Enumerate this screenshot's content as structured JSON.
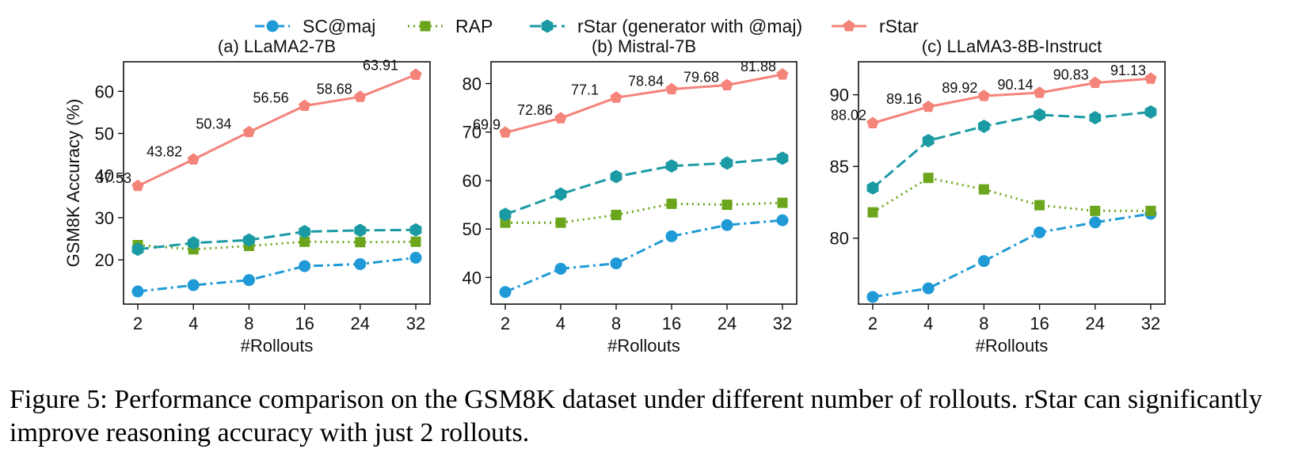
{
  "colors": {
    "sc_maj": "#1f9ad6",
    "rap": "#6aa51c",
    "rstar_gen": "#1b9aa4",
    "rstar": "#f4837a"
  },
  "legend": [
    {
      "key": "sc_maj",
      "label": "SC@maj",
      "style": "dashdot",
      "marker": "circle"
    },
    {
      "key": "rap",
      "label": "RAP",
      "style": "dotted",
      "marker": "square"
    },
    {
      "key": "rstar_gen",
      "label": "rStar (generator with @maj)",
      "style": "dashed",
      "marker": "hexagon"
    },
    {
      "key": "rstar",
      "label": "rStar",
      "style": "solid",
      "marker": "pentagon"
    }
  ],
  "shared": {
    "xlabel": "#Rollouts",
    "ylabel": "GSM8K Accuracy (%)"
  },
  "chart_data": [
    {
      "type": "line",
      "title": "(a) LLaMA2-7B",
      "categories": [
        "2",
        "4",
        "8",
        "16",
        "24",
        "32"
      ],
      "xlabel": "#Rollouts",
      "ylabel": "GSM8K Accuracy (%)",
      "ylim": [
        9.5,
        67
      ],
      "yticks": [
        20,
        30,
        40,
        50,
        60
      ],
      "series": [
        {
          "key": "sc_maj",
          "name": "SC@maj",
          "values": [
            12.5,
            14.0,
            15.2,
            18.5,
            19.0,
            20.5
          ]
        },
        {
          "key": "rap",
          "name": "RAP",
          "values": [
            23.5,
            22.5,
            23.3,
            24.3,
            24.2,
            24.3
          ]
        },
        {
          "key": "rstar_gen",
          "name": "rStar (generator with @maj)",
          "values": [
            22.5,
            24.0,
            24.7,
            26.7,
            27.0,
            27.1
          ]
        },
        {
          "key": "rstar",
          "name": "rStar",
          "values": [
            37.53,
            43.82,
            50.34,
            56.56,
            58.68,
            63.91
          ],
          "labels": [
            "37.53",
            "43.82",
            "50.34",
            "56.56",
            "58.68",
            "63.91"
          ]
        }
      ]
    },
    {
      "type": "line",
      "title": "(b) Mistral-7B",
      "categories": [
        "2",
        "4",
        "8",
        "16",
        "24",
        "32"
      ],
      "xlabel": "#Rollouts",
      "ylabel": "",
      "ylim": [
        34.5,
        84.5
      ],
      "yticks": [
        40,
        50,
        60,
        70,
        80
      ],
      "series": [
        {
          "key": "sc_maj",
          "name": "SC@maj",
          "values": [
            37.0,
            41.8,
            42.9,
            48.5,
            50.8,
            51.8
          ]
        },
        {
          "key": "rap",
          "name": "RAP",
          "values": [
            51.3,
            51.3,
            52.9,
            55.2,
            55.0,
            55.4
          ]
        },
        {
          "key": "rstar_gen",
          "name": "rStar (generator with @maj)",
          "values": [
            53.0,
            57.2,
            60.8,
            63.0,
            63.6,
            64.6
          ]
        },
        {
          "key": "rstar",
          "name": "rStar",
          "values": [
            69.9,
            72.86,
            77.1,
            78.84,
            79.68,
            81.88
          ],
          "labels": [
            "69.9",
            "72.86",
            "77.1",
            "78.84",
            "79.68",
            "81.88"
          ]
        }
      ]
    },
    {
      "type": "line",
      "title": "(c) LLaMA3-8B-Instruct",
      "categories": [
        "2",
        "4",
        "8",
        "16",
        "24",
        "32"
      ],
      "xlabel": "#Rollouts",
      "ylabel": "",
      "ylim": [
        75.4,
        92.3
      ],
      "yticks": [
        80,
        85,
        90
      ],
      "series": [
        {
          "key": "sc_maj",
          "name": "SC@maj",
          "values": [
            75.9,
            76.5,
            78.4,
            80.4,
            81.1,
            81.7
          ]
        },
        {
          "key": "rap",
          "name": "RAP",
          "values": [
            81.8,
            84.2,
            83.4,
            82.3,
            81.9,
            81.9
          ]
        },
        {
          "key": "rstar_gen",
          "name": "rStar (generator with @maj)",
          "values": [
            83.5,
            86.8,
            87.8,
            88.6,
            88.4,
            88.8
          ]
        },
        {
          "key": "rstar",
          "name": "rStar",
          "values": [
            88.02,
            89.16,
            89.92,
            90.14,
            90.83,
            91.13
          ],
          "labels": [
            "88.02",
            "89.16",
            "89.92",
            "90.14",
            "90.83",
            "91.13"
          ]
        }
      ]
    }
  ],
  "caption": "Figure 5: Performance comparison on the GSM8K dataset under different number of rollouts. rStar can significantly improve reasoning accuracy with just 2 rollouts."
}
